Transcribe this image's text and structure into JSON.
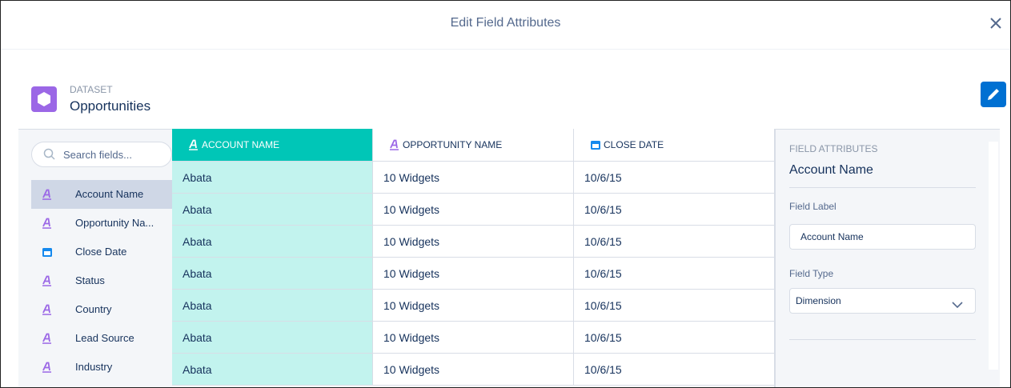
{
  "header": {
    "title": "Edit Field Attributes"
  },
  "dataset": {
    "label": "DATASET",
    "name": "Opportunities"
  },
  "search": {
    "placeholder": "Search fields..."
  },
  "fields": [
    {
      "label": "Account Name",
      "icon": "text",
      "selected": true
    },
    {
      "label": "Opportunity Na...",
      "icon": "text",
      "selected": false
    },
    {
      "label": "Close Date",
      "icon": "date",
      "selected": false
    },
    {
      "label": "Status",
      "icon": "text",
      "selected": false
    },
    {
      "label": "Country",
      "icon": "text",
      "selected": false
    },
    {
      "label": "Lead Source",
      "icon": "text",
      "selected": false
    },
    {
      "label": "Industry",
      "icon": "text",
      "selected": false
    }
  ],
  "table": {
    "columns": [
      {
        "label": "ACCOUNT NAME",
        "icon": "text",
        "selected": true
      },
      {
        "label": "OPPORTUNITY NAME",
        "icon": "text",
        "selected": false
      },
      {
        "label": "CLOSE DATE",
        "icon": "date",
        "selected": false
      }
    ],
    "rows": [
      [
        "Abata",
        "10 Widgets",
        "10/6/15"
      ],
      [
        "Abata",
        "10 Widgets",
        "10/6/15"
      ],
      [
        "Abata",
        "10 Widgets",
        "10/6/15"
      ],
      [
        "Abata",
        "10 Widgets",
        "10/6/15"
      ],
      [
        "Abata",
        "10 Widgets",
        "10/6/15"
      ],
      [
        "Abata",
        "10 Widgets",
        "10/6/15"
      ],
      [
        "Abata",
        "10 Widgets",
        "10/6/15"
      ]
    ]
  },
  "attributes": {
    "heading": "FIELD ATTRIBUTES",
    "field": "Account Name",
    "label_caption": "Field Label",
    "label_value": "Account Name",
    "type_caption": "Field Type",
    "type_value": "Dimension"
  }
}
